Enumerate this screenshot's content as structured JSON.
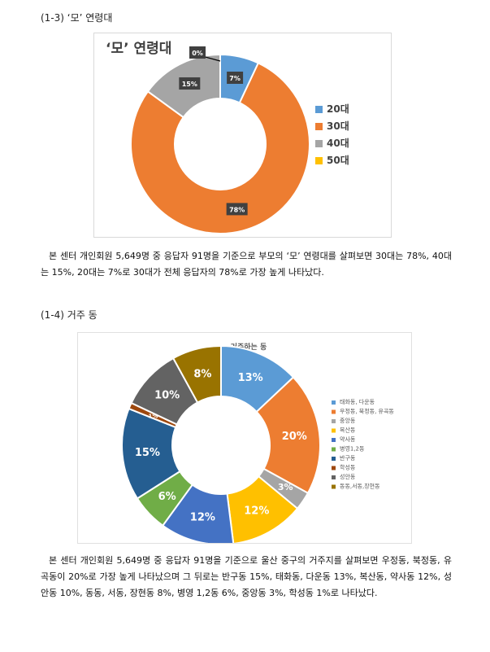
{
  "section1": {
    "heading": "(1-3) ‘모’ 연령대",
    "paragraph": "본 센터 개인회원 5,649명 중 응답자 91명을 기준으로 부모의 ‘모’ 연령대를 살펴보면 30대는 78%, 40대는 15%, 20대는 7%로 30대가 전체 응답자의 78%로 가장 높게 나타났다."
  },
  "section2": {
    "heading": "(1-4) 거주 동",
    "paragraph": "본 센터 개인회원 5,649명 중 응답자 91명을 기준으로 울산 중구의 거주지를 살펴보면 우정동, 북정동, 유곡동이 20%로 가장 높게 나타났으며 그 뒤로는 반구동 15%, 태화동, 다운동 13%, 복산동, 약사동 12%, 성안동 10%, 동동, 서동, 장현동 8%, 병영 1,2동 6%, 중앙동 3%, 학성동 1%로 나타났다."
  },
  "chart_data": [
    {
      "type": "pie",
      "title": "‘모’ 연령대",
      "categories": [
        "20대",
        "30대",
        "40대",
        "50대"
      ],
      "values": [
        7,
        78,
        15,
        0
      ],
      "labels": [
        "7%",
        "78%",
        "15%",
        "0%"
      ],
      "colors": [
        "#5B9BD5",
        "#ED7D31",
        "#A5A5A5",
        "#FFC000"
      ],
      "legend": "right"
    },
    {
      "type": "pie",
      "title": "거주하는 동",
      "categories": [
        "태화동, 다운동",
        "우정동, 북정동, 유곡동",
        "중앙동",
        "복산동",
        "약사동",
        "병영1,2동",
        "반구동",
        "학성동",
        "성안동",
        "동동,서동,장현동"
      ],
      "values": [
        13,
        20,
        3,
        12,
        12,
        6,
        15,
        1,
        10,
        8
      ],
      "labels": [
        "13%",
        "20%",
        "3%",
        "12%",
        "12%",
        "6%",
        "15%",
        "1%",
        "10%",
        "8%"
      ],
      "colors": [
        "#5B9BD5",
        "#ED7D31",
        "#A5A5A5",
        "#FFC000",
        "#4472C4",
        "#70AD47",
        "#255E91",
        "#9E480E",
        "#636363",
        "#997300"
      ],
      "legend": "right"
    }
  ]
}
